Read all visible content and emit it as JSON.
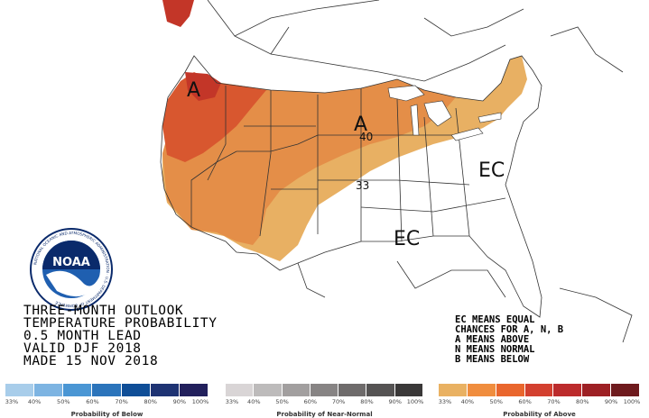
{
  "map": {
    "labels": [
      "A",
      "A",
      "EC",
      "EC",
      "40",
      "33"
    ]
  },
  "title_lines": [
    "THREE-MONTH OUTLOOK",
    "TEMPERATURE PROBABILITY",
    "0.5 MONTH LEAD",
    "VALID DJF 2018",
    "MADE 15 NOV 2018"
  ],
  "legend_lines": [
    "EC MEANS EQUAL",
    "CHANCES FOR A, N, B",
    "A MEANS ABOVE",
    "N MEANS NORMAL",
    "B MEANS BELOW"
  ],
  "logo": {
    "text": "NOAA",
    "ring_text": "NATIONAL OCEANIC AND ATMOSPHERIC ADMINISTRATION · U.S. DEPARTMENT OF COMMERCE"
  },
  "color_bars": [
    {
      "caption": "Probability of Below",
      "ticks": [
        "33%",
        "40%",
        "50%",
        "60%",
        "70%",
        "80%",
        "90%",
        "100%"
      ],
      "colors": [
        "#a8cdea",
        "#7db4e2",
        "#4a96d4",
        "#2b74bb",
        "#0f4e97",
        "#1e3373",
        "#22205c"
      ]
    },
    {
      "caption": "Probability of Near-Normal",
      "ticks": [
        "33%",
        "40%",
        "50%",
        "60%",
        "70%",
        "80%",
        "90%",
        "100%"
      ],
      "colors": [
        "#d9d5d6",
        "#bdbbbb",
        "#a29f9f",
        "#878484",
        "#6e6b6b",
        "#555353",
        "#3a3838"
      ]
    },
    {
      "caption": "Probability of Above",
      "ticks": [
        "33%",
        "40%",
        "50%",
        "60%",
        "70%",
        "80%",
        "90%",
        "100%"
      ],
      "colors": [
        "#e9b162",
        "#f08d3e",
        "#e9662d",
        "#d3402f",
        "#bc2b2c",
        "#9d2024",
        "#6e1a1d"
      ]
    }
  ],
  "category_colors": {
    "above_33_40": "#e8b063",
    "above_40_50": "#e48e48",
    "above_50_60": "#d8572f",
    "above_60_70": "#c33628",
    "equal_chances": "#ffffff"
  }
}
